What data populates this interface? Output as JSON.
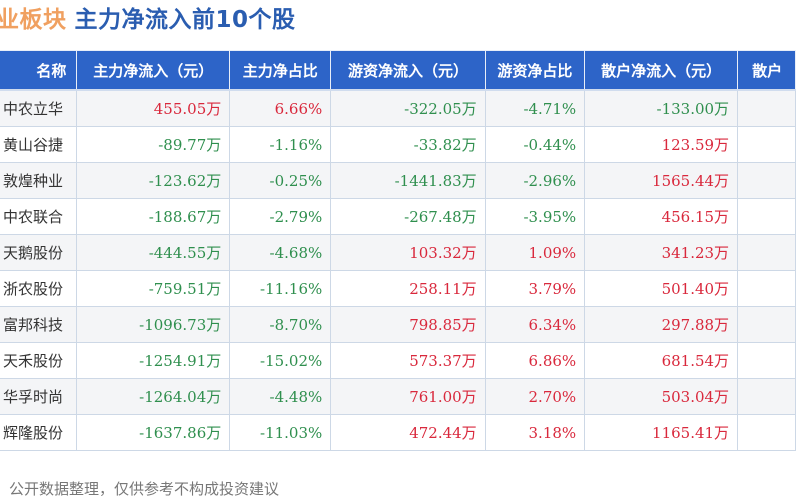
{
  "title": {
    "prefix": "业板块",
    "main": "主力净流入前10个股"
  },
  "table": {
    "headers": [
      "名称",
      "主力净流入（元）",
      "主力净占比",
      "游资净流入（元）",
      "游资净占比",
      "散户净流入（元）",
      "散户"
    ],
    "rows": [
      {
        "name": "中农立华",
        "main_inflow": "455.05万",
        "main_ratio": "6.66%",
        "hot_inflow": "-322.05万",
        "hot_ratio": "-4.71%",
        "retail_inflow": "-133.00万"
      },
      {
        "name": "黄山谷捷",
        "main_inflow": "-89.77万",
        "main_ratio": "-1.16%",
        "hot_inflow": "-33.82万",
        "hot_ratio": "-0.44%",
        "retail_inflow": "123.59万"
      },
      {
        "name": "敦煌种业",
        "main_inflow": "-123.62万",
        "main_ratio": "-0.25%",
        "hot_inflow": "-1441.83万",
        "hot_ratio": "-2.96%",
        "retail_inflow": "1565.44万"
      },
      {
        "name": "中农联合",
        "main_inflow": "-188.67万",
        "main_ratio": "-2.79%",
        "hot_inflow": "-267.48万",
        "hot_ratio": "-3.95%",
        "retail_inflow": "456.15万"
      },
      {
        "name": "天鹅股份",
        "main_inflow": "-444.55万",
        "main_ratio": "-4.68%",
        "hot_inflow": "103.32万",
        "hot_ratio": "1.09%",
        "retail_inflow": "341.23万"
      },
      {
        "name": "浙农股份",
        "main_inflow": "-759.51万",
        "main_ratio": "-11.16%",
        "hot_inflow": "258.11万",
        "hot_ratio": "3.79%",
        "retail_inflow": "501.40万"
      },
      {
        "name": "富邦科技",
        "main_inflow": "-1096.73万",
        "main_ratio": "-8.70%",
        "hot_inflow": "798.85万",
        "hot_ratio": "6.34%",
        "retail_inflow": "297.88万"
      },
      {
        "name": "天禾股份",
        "main_inflow": "-1254.91万",
        "main_ratio": "-15.02%",
        "hot_inflow": "573.37万",
        "hot_ratio": "6.86%",
        "retail_inflow": "681.54万"
      },
      {
        "name": "华孚时尚",
        "main_inflow": "-1264.04万",
        "main_ratio": "-4.48%",
        "hot_inflow": "761.00万",
        "hot_ratio": "2.70%",
        "retail_inflow": "503.04万"
      },
      {
        "name": "辉隆股份",
        "main_inflow": "-1637.86万",
        "main_ratio": "-11.03%",
        "hot_inflow": "472.44万",
        "hot_ratio": "3.18%",
        "retail_inflow": "1165.41万"
      }
    ]
  },
  "footer": "：公开数据整理，仅供参考不构成投资建议",
  "colors": {
    "header_bg": "#2d64c8",
    "title_prefix": "#f0a060",
    "title_main": "#2a5db0",
    "positive": "#d9283c",
    "negative": "#2f8f4e",
    "row_alt": "#f4f5f7"
  }
}
